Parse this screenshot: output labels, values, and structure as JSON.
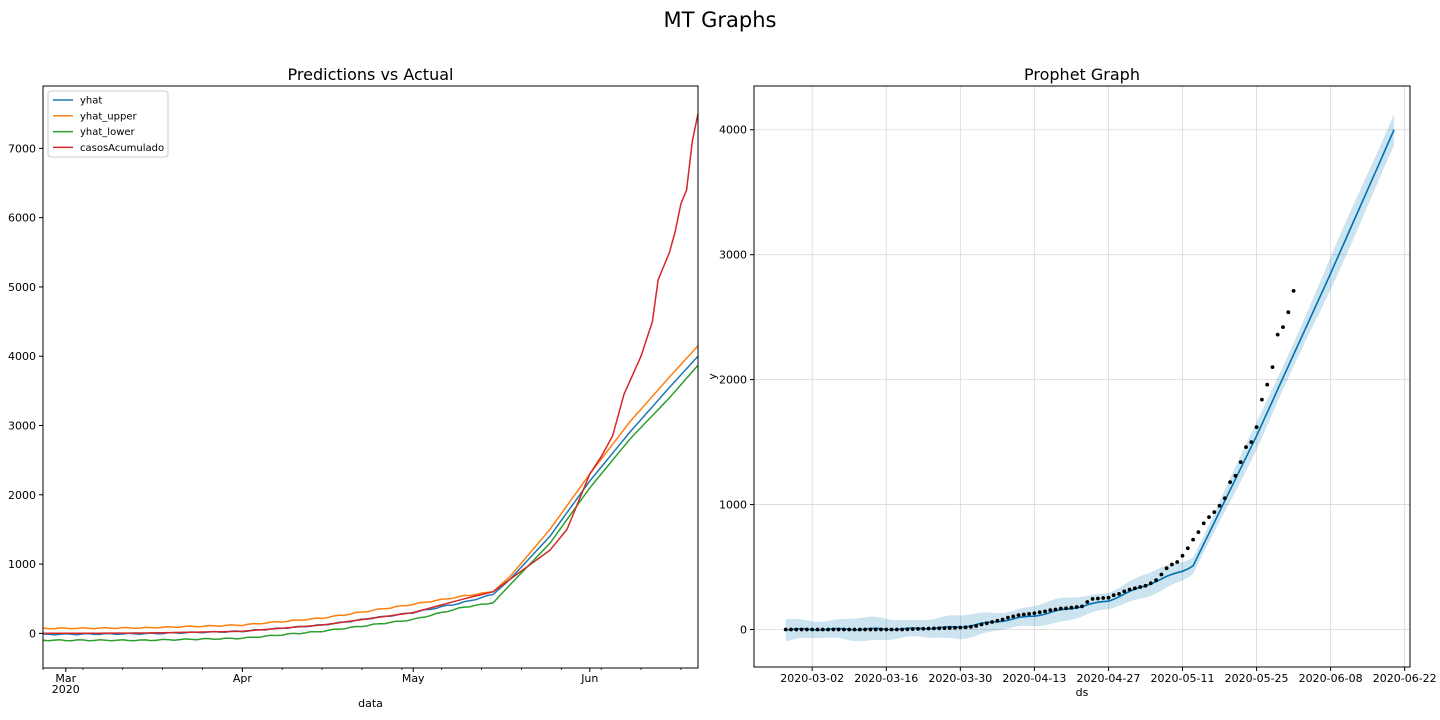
{
  "figure": {
    "suptitle": "MT Graphs"
  },
  "chart_data": [
    {
      "type": "line",
      "title": "Predictions vs Actual",
      "xlabel": "data",
      "ylabel": "",
      "x_ticks": [
        {
          "date": "2020-03-01",
          "label": "Mar",
          "sublabel": "2020"
        },
        {
          "date": "2020-04-01",
          "label": "Apr"
        },
        {
          "date": "2020-05-01",
          "label": "May"
        },
        {
          "date": "2020-06-01",
          "label": "Jun"
        }
      ],
      "y_ticks": [
        0,
        1000,
        2000,
        3000,
        4000,
        5000,
        6000,
        7000
      ],
      "xlim": [
        "2020-02-26",
        "2020-06-20"
      ],
      "ylim": [
        -500,
        7900
      ],
      "grid": false,
      "legend": "upper left",
      "colors": {
        "yhat": "#1f77b4",
        "yhat_upper": "#ff7f0e",
        "yhat_lower": "#2ca02c",
        "casosAcumulado": "#d62728"
      },
      "series": [
        {
          "name": "yhat",
          "color": "#1f77b4",
          "points": [
            [
              "2020-02-26",
              -15
            ],
            [
              "2020-03-15",
              -5
            ],
            [
              "2020-04-01",
              30
            ],
            [
              "2020-04-15",
              120
            ],
            [
              "2020-05-01",
              300
            ],
            [
              "2020-05-10",
              450
            ],
            [
              "2020-05-15",
              560
            ],
            [
              "2020-05-18",
              780
            ],
            [
              "2020-05-25",
              1400
            ],
            [
              "2020-06-01",
              2200
            ],
            [
              "2020-06-08",
              2900
            ],
            [
              "2020-06-15",
              3550
            ],
            [
              "2020-06-20",
              4000
            ]
          ]
        },
        {
          "name": "yhat_upper",
          "color": "#ff7f0e",
          "points": [
            [
              "2020-02-26",
              70
            ],
            [
              "2020-03-15",
              80
            ],
            [
              "2020-04-01",
              120
            ],
            [
              "2020-04-15",
              220
            ],
            [
              "2020-05-01",
              420
            ],
            [
              "2020-05-10",
              540
            ],
            [
              "2020-05-15",
              600
            ],
            [
              "2020-05-18",
              820
            ],
            [
              "2020-05-25",
              1500
            ],
            [
              "2020-06-01",
              2300
            ],
            [
              "2020-06-08",
              3050
            ],
            [
              "2020-06-15",
              3700
            ],
            [
              "2020-06-20",
              4150
            ]
          ]
        },
        {
          "name": "yhat_lower",
          "color": "#2ca02c",
          "points": [
            [
              "2020-02-26",
              -100
            ],
            [
              "2020-03-15",
              -100
            ],
            [
              "2020-04-01",
              -70
            ],
            [
              "2020-04-15",
              30
            ],
            [
              "2020-05-01",
              200
            ],
            [
              "2020-05-10",
              380
            ],
            [
              "2020-05-15",
              440
            ],
            [
              "2020-05-18",
              700
            ],
            [
              "2020-05-25",
              1300
            ],
            [
              "2020-06-01",
              2100
            ],
            [
              "2020-06-08",
              2800
            ],
            [
              "2020-06-15",
              3400
            ],
            [
              "2020-06-20",
              3870
            ]
          ]
        },
        {
          "name": "casosAcumulado",
          "color": "#d62728",
          "points": [
            [
              "2020-02-26",
              0
            ],
            [
              "2020-03-15",
              5
            ],
            [
              "2020-04-01",
              30
            ],
            [
              "2020-04-15",
              120
            ],
            [
              "2020-05-01",
              300
            ],
            [
              "2020-05-10",
              500
            ],
            [
              "2020-05-15",
              600
            ],
            [
              "2020-05-20",
              900
            ],
            [
              "2020-05-25",
              1200
            ],
            [
              "2020-05-28",
              1500
            ],
            [
              "2020-06-01",
              2300
            ],
            [
              "2020-06-03",
              2550
            ],
            [
              "2020-06-05",
              2850
            ],
            [
              "2020-06-07",
              3450
            ],
            [
              "2020-06-10",
              4000
            ],
            [
              "2020-06-12",
              4500
            ],
            [
              "2020-06-13",
              5100
            ],
            [
              "2020-06-15",
              5500
            ],
            [
              "2020-06-16",
              5800
            ],
            [
              "2020-06-17",
              6200
            ],
            [
              "2020-06-18",
              6400
            ],
            [
              "2020-06-19",
              7100
            ],
            [
              "2020-06-20",
              7500
            ]
          ]
        }
      ]
    },
    {
      "type": "line",
      "title": "Prophet Graph",
      "xlabel": "ds",
      "ylabel": "y",
      "x_ticks": [
        "2020-03-02",
        "2020-03-16",
        "2020-03-30",
        "2020-04-13",
        "2020-04-27",
        "2020-05-11",
        "2020-05-25",
        "2020-06-08",
        "2020-06-22"
      ],
      "y_ticks": [
        0,
        1000,
        2000,
        3000,
        4000
      ],
      "xlim": [
        "2020-02-20",
        "2020-06-23"
      ],
      "ylim": [
        -300,
        4350
      ],
      "grid": true,
      "colors": {
        "forecast": "#0072B2",
        "interval": "#0072B2",
        "observed": "#000000"
      },
      "forecast": [
        [
          "2020-02-26",
          0
        ],
        [
          "2020-03-20",
          5
        ],
        [
          "2020-03-30",
          20
        ],
        [
          "2020-04-13",
          110
        ],
        [
          "2020-04-27",
          230
        ],
        [
          "2020-05-05",
          370
        ],
        [
          "2020-05-11",
          470
        ],
        [
          "2020-05-13",
          510
        ],
        [
          "2020-05-25",
          1550
        ],
        [
          "2020-06-08",
          2850
        ],
        [
          "2020-06-20",
          4000
        ]
      ],
      "interval_width": [
        [
          "2020-02-26",
          80
        ],
        [
          "2020-05-15",
          80
        ],
        [
          "2020-06-20",
          140
        ]
      ],
      "observed": [
        [
          "2020-02-26",
          0
        ],
        [
          "2020-02-27",
          0
        ],
        [
          "2020-02-28",
          0
        ],
        [
          "2020-02-29",
          0
        ],
        [
          "2020-03-01",
          0
        ],
        [
          "2020-03-02",
          0
        ],
        [
          "2020-03-03",
          0
        ],
        [
          "2020-03-04",
          0
        ],
        [
          "2020-03-05",
          0
        ],
        [
          "2020-03-06",
          0
        ],
        [
          "2020-03-07",
          0
        ],
        [
          "2020-03-08",
          0
        ],
        [
          "2020-03-09",
          0
        ],
        [
          "2020-03-10",
          0
        ],
        [
          "2020-03-11",
          0
        ],
        [
          "2020-03-12",
          0
        ],
        [
          "2020-03-13",
          0
        ],
        [
          "2020-03-14",
          0
        ],
        [
          "2020-03-15",
          0
        ],
        [
          "2020-03-16",
          0
        ],
        [
          "2020-03-17",
          0
        ],
        [
          "2020-03-18",
          0
        ],
        [
          "2020-03-19",
          0
        ],
        [
          "2020-03-20",
          2
        ],
        [
          "2020-03-21",
          3
        ],
        [
          "2020-03-22",
          5
        ],
        [
          "2020-03-23",
          6
        ],
        [
          "2020-03-24",
          8
        ],
        [
          "2020-03-25",
          9
        ],
        [
          "2020-03-26",
          10
        ],
        [
          "2020-03-27",
          11
        ],
        [
          "2020-03-28",
          12
        ],
        [
          "2020-03-29",
          14
        ],
        [
          "2020-03-30",
          16
        ],
        [
          "2020-03-31",
          18
        ],
        [
          "2020-04-01",
          22
        ],
        [
          "2020-04-02",
          28
        ],
        [
          "2020-04-03",
          40
        ],
        [
          "2020-04-04",
          50
        ],
        [
          "2020-04-05",
          60
        ],
        [
          "2020-04-06",
          70
        ],
        [
          "2020-04-07",
          80
        ],
        [
          "2020-04-08",
          95
        ],
        [
          "2020-04-09",
          105
        ],
        [
          "2020-04-10",
          115
        ],
        [
          "2020-04-11",
          120
        ],
        [
          "2020-04-12",
          125
        ],
        [
          "2020-04-13",
          130
        ],
        [
          "2020-04-14",
          138
        ],
        [
          "2020-04-15",
          145
        ],
        [
          "2020-04-16",
          155
        ],
        [
          "2020-04-17",
          160
        ],
        [
          "2020-04-18",
          168
        ],
        [
          "2020-04-19",
          170
        ],
        [
          "2020-04-20",
          175
        ],
        [
          "2020-04-21",
          180
        ],
        [
          "2020-04-22",
          185
        ],
        [
          "2020-04-23",
          220
        ],
        [
          "2020-04-24",
          245
        ],
        [
          "2020-04-25",
          248
        ],
        [
          "2020-04-26",
          252
        ],
        [
          "2020-04-27",
          255
        ],
        [
          "2020-04-28",
          275
        ],
        [
          "2020-04-29",
          285
        ],
        [
          "2020-04-30",
          305
        ],
        [
          "2020-05-01",
          320
        ],
        [
          "2020-05-02",
          330
        ],
        [
          "2020-05-03",
          340
        ],
        [
          "2020-05-04",
          350
        ],
        [
          "2020-05-05",
          370
        ],
        [
          "2020-05-06",
          395
        ],
        [
          "2020-05-07",
          440
        ],
        [
          "2020-05-08",
          490
        ],
        [
          "2020-05-09",
          520
        ],
        [
          "2020-05-10",
          540
        ],
        [
          "2020-05-11",
          590
        ],
        [
          "2020-05-12",
          650
        ],
        [
          "2020-05-13",
          720
        ],
        [
          "2020-05-14",
          780
        ],
        [
          "2020-05-15",
          850
        ],
        [
          "2020-05-16",
          900
        ],
        [
          "2020-05-17",
          940
        ],
        [
          "2020-05-18",
          990
        ],
        [
          "2020-05-19",
          1050
        ],
        [
          "2020-05-20",
          1180
        ],
        [
          "2020-05-21",
          1230
        ],
        [
          "2020-05-22",
          1340
        ],
        [
          "2020-05-23",
          1460
        ],
        [
          "2020-05-24",
          1500
        ],
        [
          "2020-05-25",
          1620
        ],
        [
          "2020-05-26",
          1840
        ],
        [
          "2020-05-27",
          1960
        ],
        [
          "2020-05-28",
          2100
        ],
        [
          "2020-05-29",
          2360
        ],
        [
          "2020-05-30",
          2420
        ],
        [
          "2020-05-31",
          2540
        ],
        [
          "2020-06-01",
          2710
        ]
      ]
    }
  ]
}
